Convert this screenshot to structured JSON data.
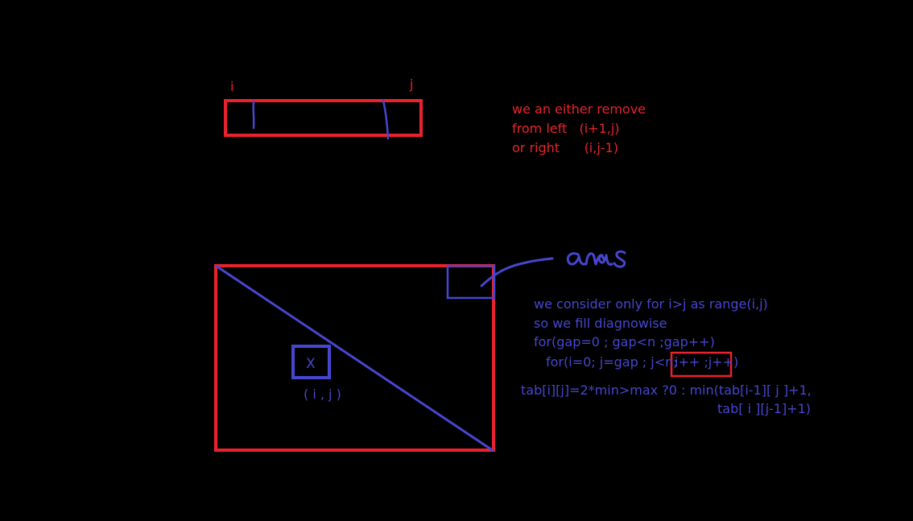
{
  "labels": {
    "i": "i",
    "j": "j",
    "ans": "ans",
    "cell": "X",
    "cell_index": "( i , j )"
  },
  "notes": [
    "we an either remove",
    "from left   (i+1,j)",
    "or right      (i,j-1)"
  ],
  "explanation": {
    "line1": "we consider only for i>j as range(i,j)",
    "line2": "so we fill diagnowise",
    "line3": "for(gap=0 ; gap<n ;gap++)",
    "line4_start": "for(i=0; j=gap ; j<n;",
    "line4_boxed": "i++ ;j++)"
  },
  "formula": {
    "line1": "tab[i][j]=2*min>max ?0 : min(tab[i-1][ j ]+1,",
    "line2": "tab[ i ][j-1]+1)"
  },
  "colors": {
    "background": "#000000",
    "red": "#e8232d",
    "blue": "#4646cf"
  }
}
